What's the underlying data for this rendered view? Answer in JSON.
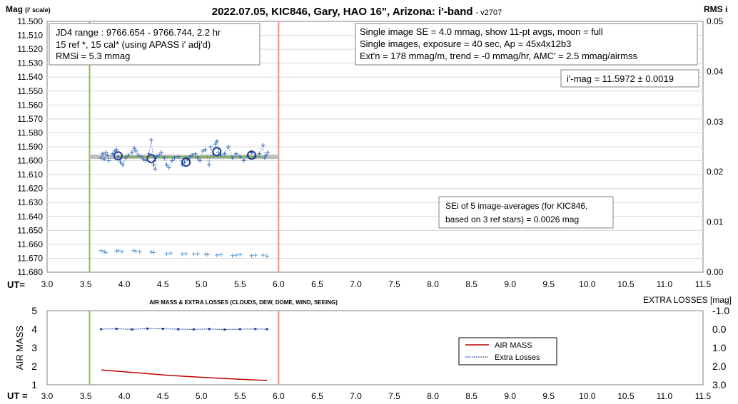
{
  "header": {
    "title": "2022.07.05, KIC846, Gary, HAO 16\", Arizona: i'-band",
    "version": "- v2707",
    "left_axis_title": "Mag",
    "left_axis_title_sub": "(i' scale)",
    "right_axis_title": "RMS i"
  },
  "top_chart": {
    "x_axis_label": "UT=",
    "info_left": [
      "JD4 range : 9766.654 - 9766.744, 2.2  hr",
      "15 ref *, 15 cal* (using APASS i' adj'd)",
      "RMSi = 5.3 mmag"
    ],
    "info_right": [
      "Single image SE = 4.0 mmag, show 11-pt avgs, moon = full",
      "Single images, exposure = 40 sec, Ap = 45x4x12b3",
      "Ext'n = 178 mmag/m, trend = -0 mmag/hr, AMC' = 2.5 mmag/airmss"
    ],
    "mag_box": "i'-mag = 11.5972 ± 0.0019",
    "sei_box": [
      "SEi of 5 image-averages (for KIC846,",
      "based on 3 ref stars) = 0.0026 mag"
    ]
  },
  "bottom_chart": {
    "title": "AIR MASS & EXTRA LOSSES (CLOUDS, DEW, DOME, WIND, SEEING)",
    "left_label": "AIR MASS",
    "right_label": "EXTRA LOSSES [mag]",
    "x_axis_label": "UT =",
    "legend": [
      "AIR MASS",
      "Extra Losses"
    ]
  },
  "colors": {
    "single_points": "#3a6fb5",
    "averages": "#1f3a93",
    "mean_band": "#bfbfbf",
    "mean_line": "#70ad47",
    "rms_points": "#5b9bd5",
    "start_line": "#8bc34a",
    "end_line": "#e8908c",
    "airmass": "#c00000",
    "extra_losses": "#1f3a93"
  },
  "chart_data": [
    {
      "type": "scatter",
      "title": "2022.07.05, KIC846, Gary, HAO 16\", Arizona: i'-band",
      "xlabel": "UT=",
      "ylabel": "Mag (i' scale)",
      "y2label": "RMS i",
      "xlim": [
        3.0,
        11.5
      ],
      "ylim": [
        11.68,
        11.5
      ],
      "y2lim": [
        0.0,
        0.05
      ],
      "x_ticks": [
        "3.0",
        "3.5",
        "4.0",
        "4.5",
        "5.0",
        "5.5",
        "6.0",
        "6.5",
        "7.0",
        "7.5",
        "8.0",
        "8.5",
        "9.0",
        "9.5",
        "10.0",
        "10.5",
        "11.0",
        "11.5"
      ],
      "y_ticks": [
        "11.500",
        "11.510",
        "11.520",
        "11.530",
        "11.540",
        "11.550",
        "11.560",
        "11.570",
        "11.580",
        "11.590",
        "11.600",
        "11.610",
        "11.620",
        "11.630",
        "11.640",
        "11.650",
        "11.660",
        "11.670",
        "11.680"
      ],
      "y2_ticks": [
        "0.00",
        "0.01",
        "0.02",
        "0.03",
        "0.04",
        "0.05"
      ],
      "vertical_lines": {
        "start": 3.55,
        "end": 6.0
      },
      "mean_mag": 11.5972,
      "mean_range": [
        3.55,
        6.0
      ],
      "series": [
        {
          "kind": "single images",
          "x": [
            3.7,
            3.72,
            3.74,
            3.76,
            3.78,
            3.8,
            3.85,
            3.88,
            3.9,
            3.92,
            3.95,
            3.98,
            4.02,
            4.05,
            4.1,
            4.13,
            4.15,
            4.18,
            4.22,
            4.25,
            4.28,
            4.32,
            4.35,
            4.38,
            4.4,
            4.42,
            4.45,
            4.48,
            4.52,
            4.55,
            4.58,
            4.62,
            4.65,
            4.7,
            4.75,
            4.78,
            4.82,
            4.85,
            4.88,
            4.92,
            4.95,
            4.98,
            5.02,
            5.05,
            5.1,
            5.12,
            5.15,
            5.18,
            5.2,
            5.22,
            5.25,
            5.3,
            5.35,
            5.4,
            5.45,
            5.5,
            5.55,
            5.6,
            5.65,
            5.7,
            5.75,
            5.8,
            5.82,
            5.84,
            5.86
          ],
          "y": [
            11.598,
            11.595,
            11.599,
            11.594,
            11.596,
            11.6,
            11.595,
            11.593,
            11.592,
            11.597,
            11.601,
            11.603,
            11.598,
            11.596,
            11.594,
            11.591,
            11.593,
            11.596,
            11.597,
            11.599,
            11.6,
            11.595,
            11.585,
            11.603,
            11.606,
            11.597,
            11.596,
            11.594,
            11.598,
            11.603,
            11.605,
            11.6,
            11.598,
            11.597,
            11.603,
            11.601,
            11.599,
            11.597,
            11.596,
            11.595,
            11.598,
            11.6,
            11.593,
            11.592,
            11.603,
            11.59,
            11.596,
            11.588,
            11.586,
            11.594,
            11.596,
            11.595,
            11.59,
            11.598,
            11.595,
            11.597,
            11.6,
            11.596,
            11.594,
            11.597,
            11.595,
            11.589,
            11.598,
            11.596,
            11.594
          ]
        },
        {
          "kind": "11-pt averages",
          "x": [
            3.92,
            4.35,
            4.8,
            5.2,
            5.65
          ],
          "y": [
            11.5965,
            11.5985,
            11.601,
            11.5935,
            11.596
          ]
        },
        {
          "kind": "RMS (right axis)",
          "x": [
            3.7,
            3.74,
            3.76,
            3.9,
            3.92,
            3.97,
            4.12,
            4.15,
            4.2,
            4.35,
            4.38,
            4.55,
            4.6,
            4.75,
            4.8,
            4.9,
            4.95,
            5.05,
            5.08,
            5.2,
            5.25,
            5.4,
            5.45,
            5.5,
            5.65,
            5.7,
            5.8,
            5.85
          ],
          "y": [
            0.0043,
            0.0041,
            0.0039,
            0.0042,
            0.0043,
            0.0041,
            0.0043,
            0.0042,
            0.0041,
            0.004,
            0.0039,
            0.0037,
            0.0038,
            0.0036,
            0.0037,
            0.0036,
            0.0037,
            0.0036,
            0.0035,
            0.0034,
            0.0035,
            0.0033,
            0.0034,
            0.0035,
            0.0033,
            0.0034,
            0.0034,
            0.0032
          ]
        }
      ]
    },
    {
      "type": "line",
      "title": "AIR MASS & EXTRA LOSSES (CLOUDS, DEW, DOME, WIND, SEEING)",
      "xlabel": "UT =",
      "ylabel": "AIR MASS",
      "y2label": "EXTRA LOSSES [mag]",
      "xlim": [
        3.0,
        11.5
      ],
      "ylim": [
        1,
        5
      ],
      "y2lim": [
        3.0,
        -1.0
      ],
      "x_ticks": [
        "3.0",
        "3.5",
        "4.0",
        "4.5",
        "5.0",
        "5.5",
        "6.0",
        "6.5",
        "7.0",
        "7.5",
        "8.0",
        "8.5",
        "9.0",
        "9.5",
        "10.0",
        "10.5",
        "11.0",
        "11.5"
      ],
      "y_ticks": [
        "1",
        "2",
        "3",
        "4",
        "5"
      ],
      "y2_ticks": [
        "-1.0",
        "0.0",
        "1.0",
        "2.0",
        "3.0"
      ],
      "legend_position": "right",
      "series": [
        {
          "name": "AIR MASS",
          "x": [
            3.7,
            4.0,
            4.3,
            4.6,
            4.9,
            5.2,
            5.5,
            5.85
          ],
          "y": [
            1.8,
            1.7,
            1.6,
            1.5,
            1.43,
            1.36,
            1.3,
            1.23
          ]
        },
        {
          "name": "Extra Losses",
          "x": [
            3.7,
            3.9,
            4.1,
            4.3,
            4.5,
            4.7,
            4.9,
            5.1,
            5.3,
            5.5,
            5.7,
            5.85
          ],
          "y": [
            0.0,
            -0.02,
            0.01,
            -0.03,
            -0.02,
            0.0,
            0.01,
            -0.01,
            0.02,
            0.0,
            -0.01,
            0.0
          ]
        }
      ]
    }
  ]
}
